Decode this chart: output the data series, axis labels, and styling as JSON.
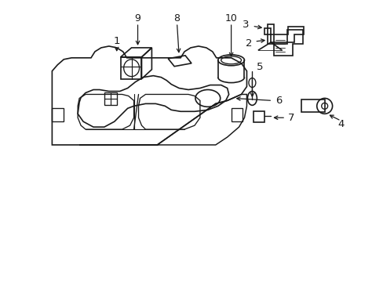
{
  "background_color": "#ffffff",
  "line_color": "#1a1a1a",
  "line_width": 1.2,
  "fig_width": 4.89,
  "fig_height": 3.6,
  "dpi": 100
}
